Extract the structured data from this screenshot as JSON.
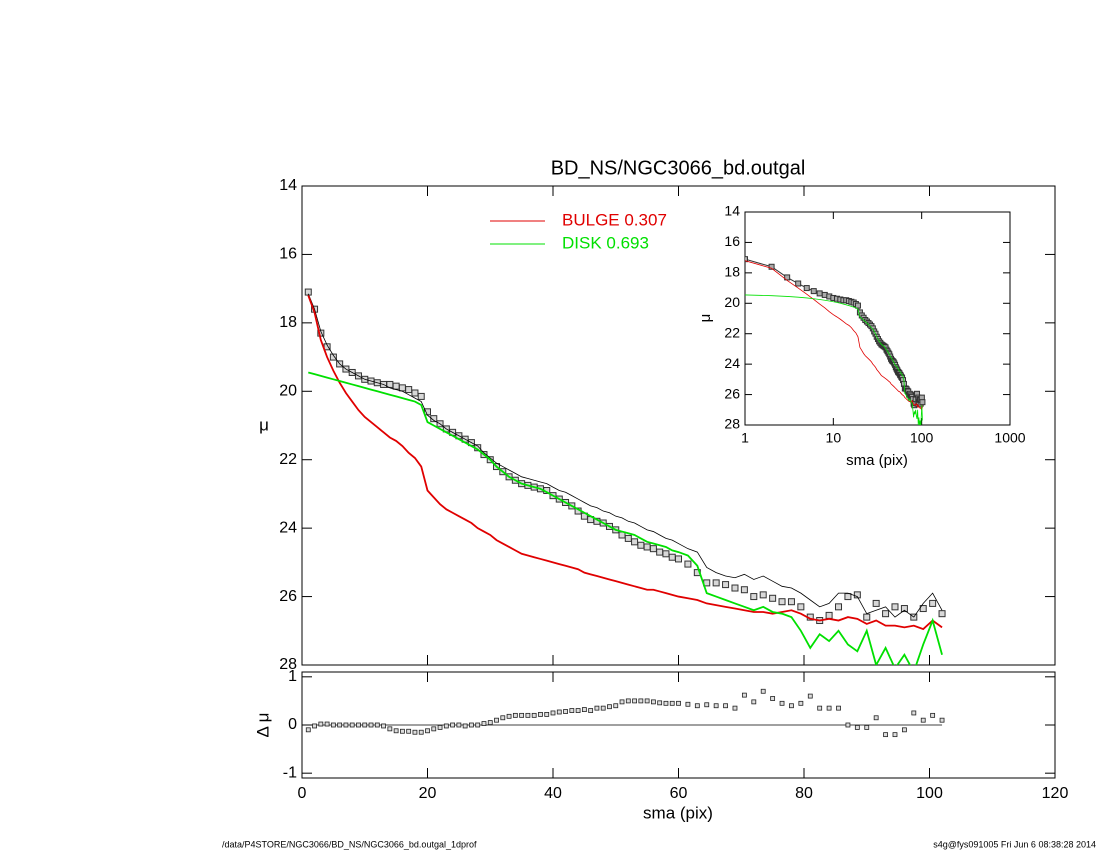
{
  "chart_data": [
    {
      "type": "line",
      "title": "BD_NS/NGC3066_bd.outgal",
      "ylabel": "μ",
      "xlim": [
        0,
        120
      ],
      "xticks": [
        0,
        20,
        40,
        60,
        80,
        100,
        120
      ],
      "ylim": [
        14,
        28
      ],
      "invert_y": true,
      "yticks": [
        14,
        16,
        18,
        20,
        22,
        24,
        26,
        28
      ],
      "x": [
        1,
        2,
        3,
        4,
        5,
        6,
        7,
        8,
        9,
        10,
        11,
        12,
        13,
        14,
        15,
        16,
        17,
        18,
        19,
        20,
        21,
        22,
        23,
        24,
        25,
        26,
        27,
        28,
        29,
        30,
        31,
        32,
        33,
        34,
        35,
        36,
        37,
        38,
        39,
        40,
        41,
        42,
        43,
        44,
        45,
        46,
        47,
        48,
        49,
        50,
        51,
        52,
        53,
        54,
        55,
        56,
        57,
        58,
        59,
        60,
        61.5,
        63,
        64.5,
        66,
        67.5,
        69,
        70.5,
        72,
        73.5,
        75,
        76.5,
        78,
        79.5,
        81,
        82.5,
        84,
        85.5,
        87,
        88.5,
        90,
        91.5,
        93,
        94.5,
        96,
        97.5,
        99,
        100.5,
        102
      ],
      "series": [
        {
          "color": "#333333",
          "marker": "square",
          "values": [
            17.1,
            17.6,
            18.3,
            18.7,
            19.0,
            19.2,
            19.35,
            19.45,
            19.55,
            19.65,
            19.7,
            19.75,
            19.8,
            19.8,
            19.85,
            19.9,
            19.95,
            20.05,
            20.15,
            20.6,
            20.8,
            20.95,
            21.1,
            21.2,
            21.3,
            21.4,
            21.5,
            21.65,
            21.85,
            22.0,
            22.2,
            22.35,
            22.5,
            22.6,
            22.7,
            22.75,
            22.8,
            22.85,
            22.9,
            23.05,
            23.15,
            23.25,
            23.35,
            23.5,
            23.65,
            23.75,
            23.8,
            23.85,
            23.95,
            24.05,
            24.2,
            24.3,
            24.4,
            24.5,
            24.55,
            24.6,
            24.7,
            24.75,
            24.85,
            24.9,
            25.05,
            25.3,
            25.6,
            25.6,
            25.65,
            25.75,
            25.8,
            26.0,
            25.95,
            26.05,
            26.15,
            26.15,
            26.3,
            26.6,
            26.7,
            26.55,
            26.3,
            26.0,
            25.95,
            26.6,
            26.2,
            26.5,
            26.3,
            26.35,
            26.6,
            26.35,
            26.2,
            26.5
          ]
        },
        {
          "color": "#000000",
          "values": [
            17.15,
            17.6,
            18.25,
            18.65,
            18.95,
            19.2,
            19.35,
            19.45,
            19.55,
            19.65,
            19.7,
            19.75,
            19.8,
            19.9,
            19.95,
            20.0,
            20.1,
            20.2,
            20.3,
            20.7,
            20.85,
            20.95,
            21.1,
            21.2,
            21.3,
            21.4,
            21.5,
            21.6,
            21.8,
            21.95,
            22.1,
            22.2,
            22.3,
            22.4,
            22.5,
            22.55,
            22.6,
            22.65,
            22.7,
            22.8,
            22.9,
            22.95,
            23.05,
            23.15,
            23.25,
            23.35,
            23.4,
            23.5,
            23.55,
            23.65,
            23.7,
            23.8,
            23.85,
            23.95,
            24.05,
            24.1,
            24.2,
            24.3,
            24.35,
            24.45,
            24.6,
            24.7,
            25.15,
            25.3,
            25.4,
            25.45,
            25.35,
            25.5,
            25.4,
            25.55,
            25.7,
            25.75,
            25.9,
            26.1,
            26.3,
            26.2,
            25.9,
            25.9,
            26.0,
            26.5,
            26.4,
            26.3,
            26.6,
            26.4,
            26.6,
            26.2,
            25.9,
            26.4
          ]
        },
        {
          "name": "BULGE  0.307",
          "color": "#e00000",
          "values": [
            17.2,
            17.7,
            18.5,
            19.0,
            19.4,
            19.75,
            20.05,
            20.3,
            20.55,
            20.75,
            20.9,
            21.05,
            21.2,
            21.35,
            21.45,
            21.6,
            21.8,
            21.95,
            22.2,
            22.9,
            23.1,
            23.3,
            23.45,
            23.55,
            23.65,
            23.75,
            23.85,
            24.0,
            24.1,
            24.2,
            24.35,
            24.45,
            24.55,
            24.65,
            24.75,
            24.8,
            24.85,
            24.9,
            24.95,
            25.0,
            25.05,
            25.1,
            25.15,
            25.2,
            25.3,
            25.35,
            25.4,
            25.45,
            25.5,
            25.55,
            25.6,
            25.65,
            25.7,
            25.75,
            25.8,
            25.8,
            25.85,
            25.9,
            25.95,
            26.0,
            26.05,
            26.1,
            26.2,
            26.25,
            26.3,
            26.35,
            26.4,
            26.45,
            26.45,
            26.5,
            26.45,
            26.4,
            26.5,
            26.65,
            26.7,
            26.65,
            26.7,
            26.6,
            26.65,
            26.8,
            26.7,
            26.85,
            26.85,
            26.9,
            26.85,
            26.95,
            26.7,
            26.9
          ]
        },
        {
          "name": "DISK  0.693",
          "color": "#00e000",
          "values": [
            19.45,
            19.5,
            19.55,
            19.6,
            19.65,
            19.7,
            19.75,
            19.8,
            19.85,
            19.9,
            19.95,
            20.0,
            20.05,
            20.1,
            20.15,
            20.2,
            20.25,
            20.3,
            20.4,
            20.9,
            21.0,
            21.1,
            21.2,
            21.3,
            21.4,
            21.5,
            21.6,
            21.7,
            21.85,
            22.0,
            22.2,
            22.35,
            22.5,
            22.6,
            22.7,
            22.75,
            22.8,
            22.85,
            22.95,
            23.05,
            23.15,
            23.25,
            23.35,
            23.45,
            23.55,
            23.65,
            23.75,
            23.85,
            23.95,
            24.05,
            24.1,
            24.15,
            24.2,
            24.3,
            24.4,
            24.45,
            24.5,
            24.55,
            24.65,
            24.7,
            24.8,
            25.1,
            25.9,
            26.0,
            26.1,
            26.2,
            26.3,
            26.4,
            26.3,
            26.45,
            26.5,
            26.6,
            27.0,
            27.5,
            27.1,
            27.3,
            27.0,
            27.4,
            27.6,
            27.0,
            28.0,
            27.5,
            28.1,
            27.7,
            28.2,
            27.4,
            26.7,
            27.7
          ]
        }
      ]
    },
    {
      "type": "scatter",
      "xlabel": "sma (pix)",
      "ylabel": "Δ μ",
      "ylim": [
        -1.1,
        1.1
      ],
      "yticks": [
        -1,
        0,
        1
      ],
      "zero_line": true,
      "values": [
        -0.1,
        -0.02,
        0.02,
        0.02,
        0.0,
        0.0,
        0.0,
        0.0,
        0.0,
        0.0,
        0.0,
        0.0,
        -0.02,
        -0.08,
        -0.12,
        -0.13,
        -0.13,
        -0.15,
        -0.15,
        -0.12,
        -0.08,
        -0.05,
        -0.02,
        0.0,
        0.0,
        -0.02,
        0.0,
        0.0,
        0.03,
        0.05,
        0.1,
        0.15,
        0.18,
        0.2,
        0.2,
        0.2,
        0.2,
        0.22,
        0.22,
        0.25,
        0.27,
        0.28,
        0.3,
        0.3,
        0.32,
        0.3,
        0.35,
        0.35,
        0.38,
        0.4,
        0.48,
        0.5,
        0.5,
        0.5,
        0.5,
        0.48,
        0.46,
        0.45,
        0.45,
        0.45,
        0.43,
        0.4,
        0.42,
        0.4,
        0.4,
        0.35,
        0.62,
        0.48,
        0.7,
        0.55,
        0.45,
        0.4,
        0.45,
        0.6,
        0.35,
        0.35,
        0.35,
        0.0,
        -0.05,
        -0.05,
        0.15,
        -0.2,
        -0.2,
        -0.1,
        0.25,
        0.1,
        0.2,
        0.1
      ]
    },
    {
      "type": "line",
      "xlabel": "sma (pix)",
      "ylabel": "μ",
      "log_x": true,
      "xlim": [
        1,
        1000
      ],
      "xticks": [
        1,
        10,
        100,
        1000
      ],
      "ylim": [
        14,
        28
      ],
      "invert_y": true,
      "yticks": [
        14,
        16,
        18,
        20,
        22,
        24,
        26,
        28
      ]
    }
  ],
  "footer": {
    "left": "/data/P4STORE/NGC3066/BD_NS/NGC3066_bd.outgal_1dprof",
    "right": "s4g@fys091005  Fri Jun  6 08:38:28 2014"
  }
}
